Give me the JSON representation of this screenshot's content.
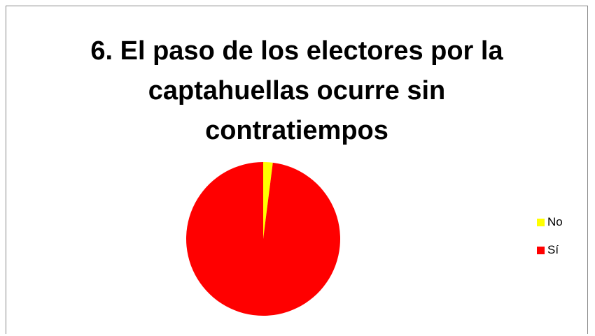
{
  "chart_data": {
    "type": "pie",
    "title": "6. El paso de los electores por la captahuellas ocurre sin contratiempos",
    "title_lines": [
      "6. El paso de los electores por la",
      "captahuellas ocurre sin",
      "contratiempos"
    ],
    "categories": [
      "No",
      "Sí"
    ],
    "values": [
      2,
      98
    ],
    "colors": [
      "#FFFF00",
      "#FF0000"
    ],
    "legend": {
      "position": "right",
      "entries": [
        "No",
        "Sí"
      ]
    }
  }
}
